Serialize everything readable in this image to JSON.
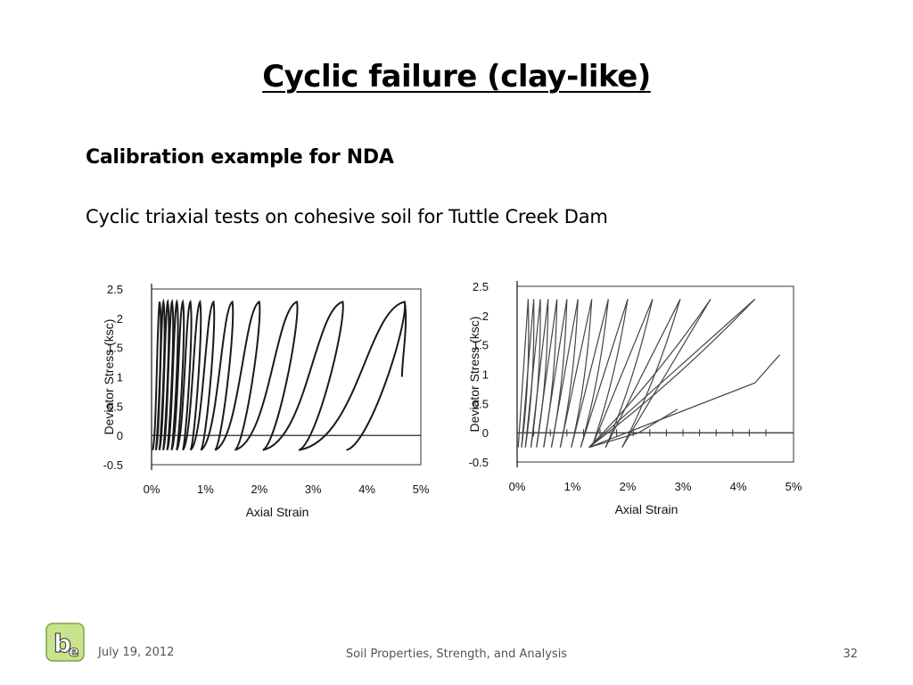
{
  "slide": {
    "title": "Cyclic failure (clay-like)",
    "subheading": "Calibration example for NDA",
    "body": "Cyclic triaxial tests on cohesive soil for Tuttle Creek Dam"
  },
  "footer": {
    "date": "July 19, 2012",
    "center": "Soil Properties, Strength, and Analysis",
    "page": "32"
  },
  "chart_data": [
    {
      "type": "line",
      "xlabel": "Axial Strain",
      "ylabel": "Deviator Stress (ksc)",
      "xticks": [
        "0%",
        "1%",
        "2%",
        "3%",
        "4%",
        "5%"
      ],
      "yticks": [
        "2.5",
        "2",
        "1.5",
        "1",
        "0.5",
        "0",
        "-0.5"
      ],
      "xlim": [
        0,
        5
      ],
      "ylim": [
        -0.5,
        2.5
      ],
      "grid": false,
      "loop_peaks_x": [
        0.15,
        0.22,
        0.3,
        0.38,
        0.47,
        0.58,
        0.72,
        0.9,
        1.15,
        1.5,
        2.0,
        2.7,
        3.55,
        4.7
      ],
      "peak_y": 2.28,
      "trough_y": -0.25,
      "color": "#1a1a1a"
    },
    {
      "type": "line",
      "xlabel": "Axial Strain",
      "ylabel": "Deviator Stress (ksc)",
      "xticks": [
        "0%",
        "1%",
        "2%",
        "3%",
        "4%",
        "5%"
      ],
      "yticks": [
        "2.5",
        "2",
        "1.5",
        "1",
        "0.5",
        "0",
        "-0.5"
      ],
      "xlim": [
        0,
        5
      ],
      "ylim": [
        -0.5,
        2.5
      ],
      "grid": false,
      "peaks_x": [
        0.2,
        0.3,
        0.42,
        0.56,
        0.72,
        0.9,
        1.1,
        1.35,
        1.65,
        2.0,
        2.45,
        2.95,
        3.5,
        4.3
      ],
      "troughs_x": [
        0.02,
        0.08,
        0.15,
        0.25,
        0.35,
        0.48,
        0.62,
        0.78,
        0.98,
        1.15,
        1.35,
        1.6,
        1.9,
        1.3
      ],
      "peak_y": 2.28,
      "trough_y": -0.25,
      "final_segment": [
        [
          1.3,
          -0.25
        ],
        [
          4.3,
          0.85
        ],
        [
          4.75,
          1.33
        ]
      ],
      "color": "#444444"
    }
  ]
}
